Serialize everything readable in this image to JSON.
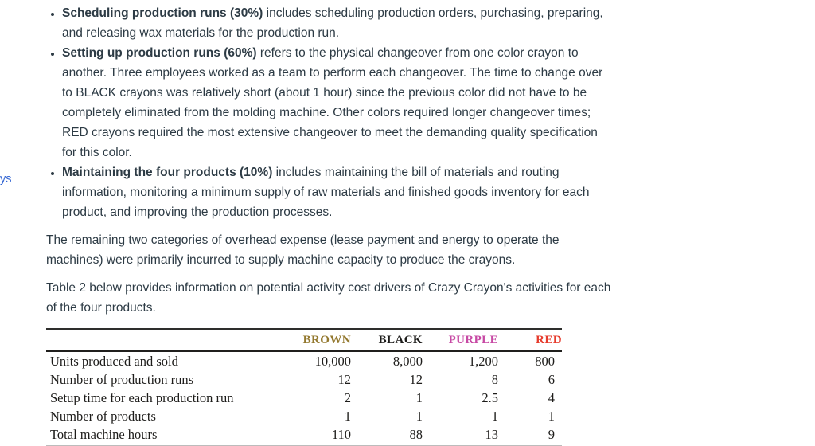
{
  "sidebar": {
    "fragment_label": "ys",
    "link_color": "#3567d3"
  },
  "content": {
    "bullets": [
      {
        "lead": "Scheduling production runs (30%)",
        "text": " includes scheduling production orders, purchasing, preparing, and releasing wax materials for the production run."
      },
      {
        "lead": "Setting up production runs (60%)",
        "text": " refers to the physical changeover from one color crayon to another. Three employees worked as a team to perform each changeover. The time to change over to BLACK crayons was relatively short (about 1 hour) since the previous color did not have to be completely eliminated from the molding machine. Other colors required longer changeover times; RED crayons required the most extensive changeover to meet the demanding quality specification for this color."
      },
      {
        "lead": "Maintaining the four products (10%)",
        "text": " includes maintaining the bill of materials and routing information, monitoring a minimum supply of raw materials and finished goods inventory for each product, and improving the production processes."
      }
    ],
    "paragraphs": [
      "The remaining two categories of overhead expense (lease payment and energy to operate the machines) were primarily incurred to supply machine capacity to produce the crayons.",
      "Table 2 below provides information on potential activity cost drivers of Crazy Crayon's activities for each of the four products."
    ]
  },
  "table": {
    "columns": [
      {
        "label": "BROWN",
        "color": "#93782e"
      },
      {
        "label": "BLACK",
        "color": "#1c1b19"
      },
      {
        "label": "PURPLE",
        "color": "#c749a4"
      },
      {
        "label": "RED",
        "color": "#e63b2c"
      }
    ],
    "rows": [
      {
        "label": "Units produced and sold",
        "values": [
          "10,000",
          "8,000",
          "1,200",
          "800"
        ]
      },
      {
        "label": "Number of production runs",
        "values": [
          "12",
          "12",
          "8",
          "6"
        ]
      },
      {
        "label": "Setup time for each production run",
        "values": [
          "2",
          "1",
          "2.5",
          "4"
        ]
      },
      {
        "label": "Number of products",
        "values": [
          "1",
          "1",
          "1",
          "1"
        ]
      },
      {
        "label": "Total machine hours",
        "values": [
          "110",
          "88",
          "13",
          "9"
        ]
      }
    ]
  },
  "colors": {
    "body_text": "#2d3b45",
    "table_text": "#1d1c1a"
  }
}
